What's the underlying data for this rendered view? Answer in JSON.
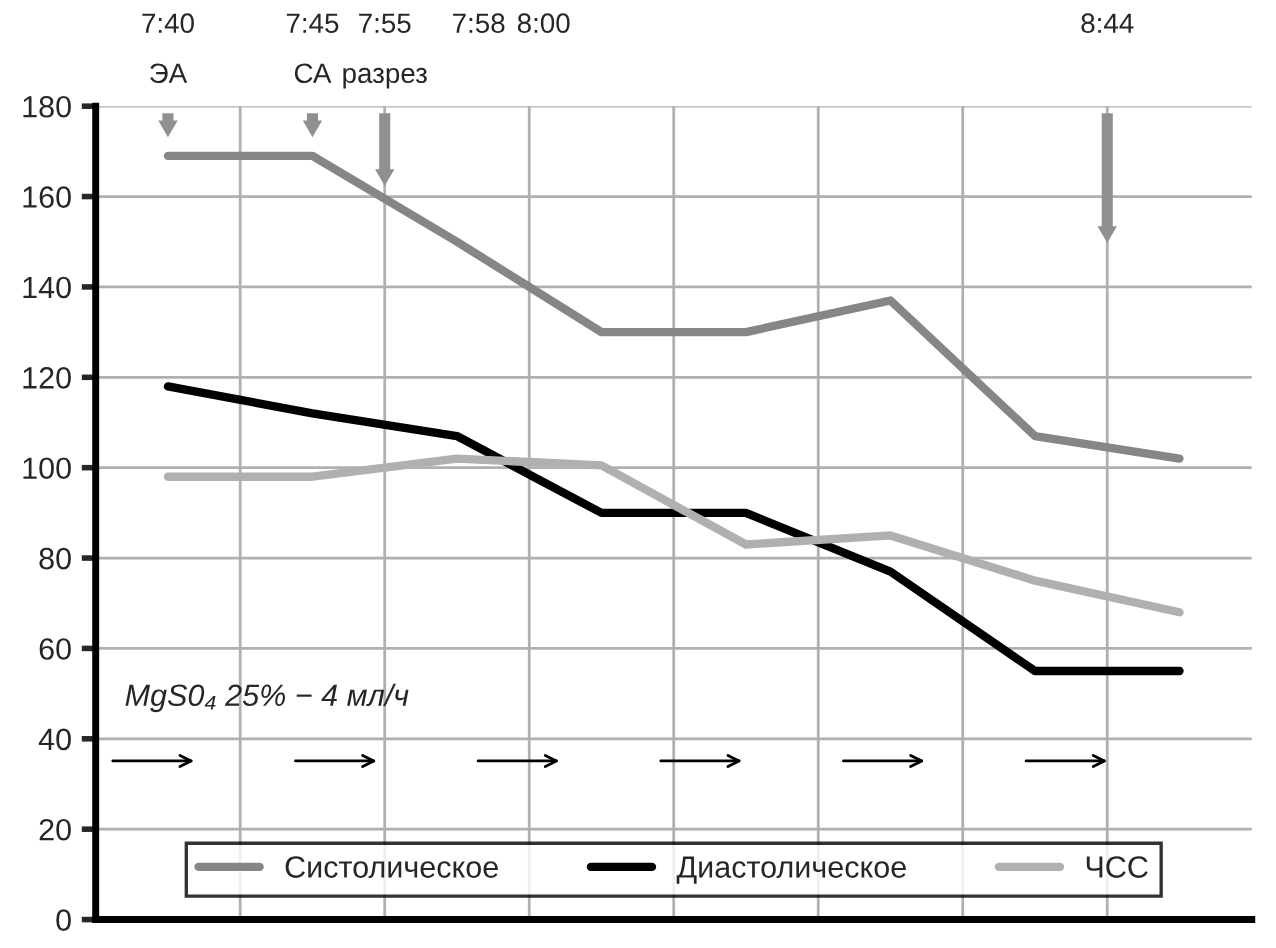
{
  "chart_data": {
    "type": "line",
    "categories": [
      null,
      null,
      null,
      null,
      null,
      null,
      null,
      null
    ],
    "series": [
      {
        "name": "Систолическое",
        "color": "#868686",
        "values": [
          169,
          169,
          150,
          130,
          130,
          137,
          107,
          102
        ]
      },
      {
        "name": "Диастолическое",
        "color": "#000000",
        "values": [
          118,
          112,
          107,
          90,
          90,
          77,
          55,
          55
        ]
      },
      {
        "name": "ЧСС",
        "color": "#b0b0b0",
        "values": [
          98,
          98,
          102,
          100.5,
          83,
          85,
          75,
          68
        ]
      }
    ],
    "ylim": [
      0,
      180
    ],
    "yticks": [
      0,
      20,
      40,
      60,
      80,
      100,
      120,
      140,
      160,
      180
    ],
    "tick_labels": "y",
    "grid": true,
    "legend": "bottom",
    "marker": "none",
    "line_style": "solid",
    "annotations": [
      "7:40\nЭА",
      "7:45\nСА",
      "7:55\nразрез",
      "7:58",
      "8:00",
      "8:44",
      "MgS0₄ 25% − 4 мл/ч"
    ]
  }
}
